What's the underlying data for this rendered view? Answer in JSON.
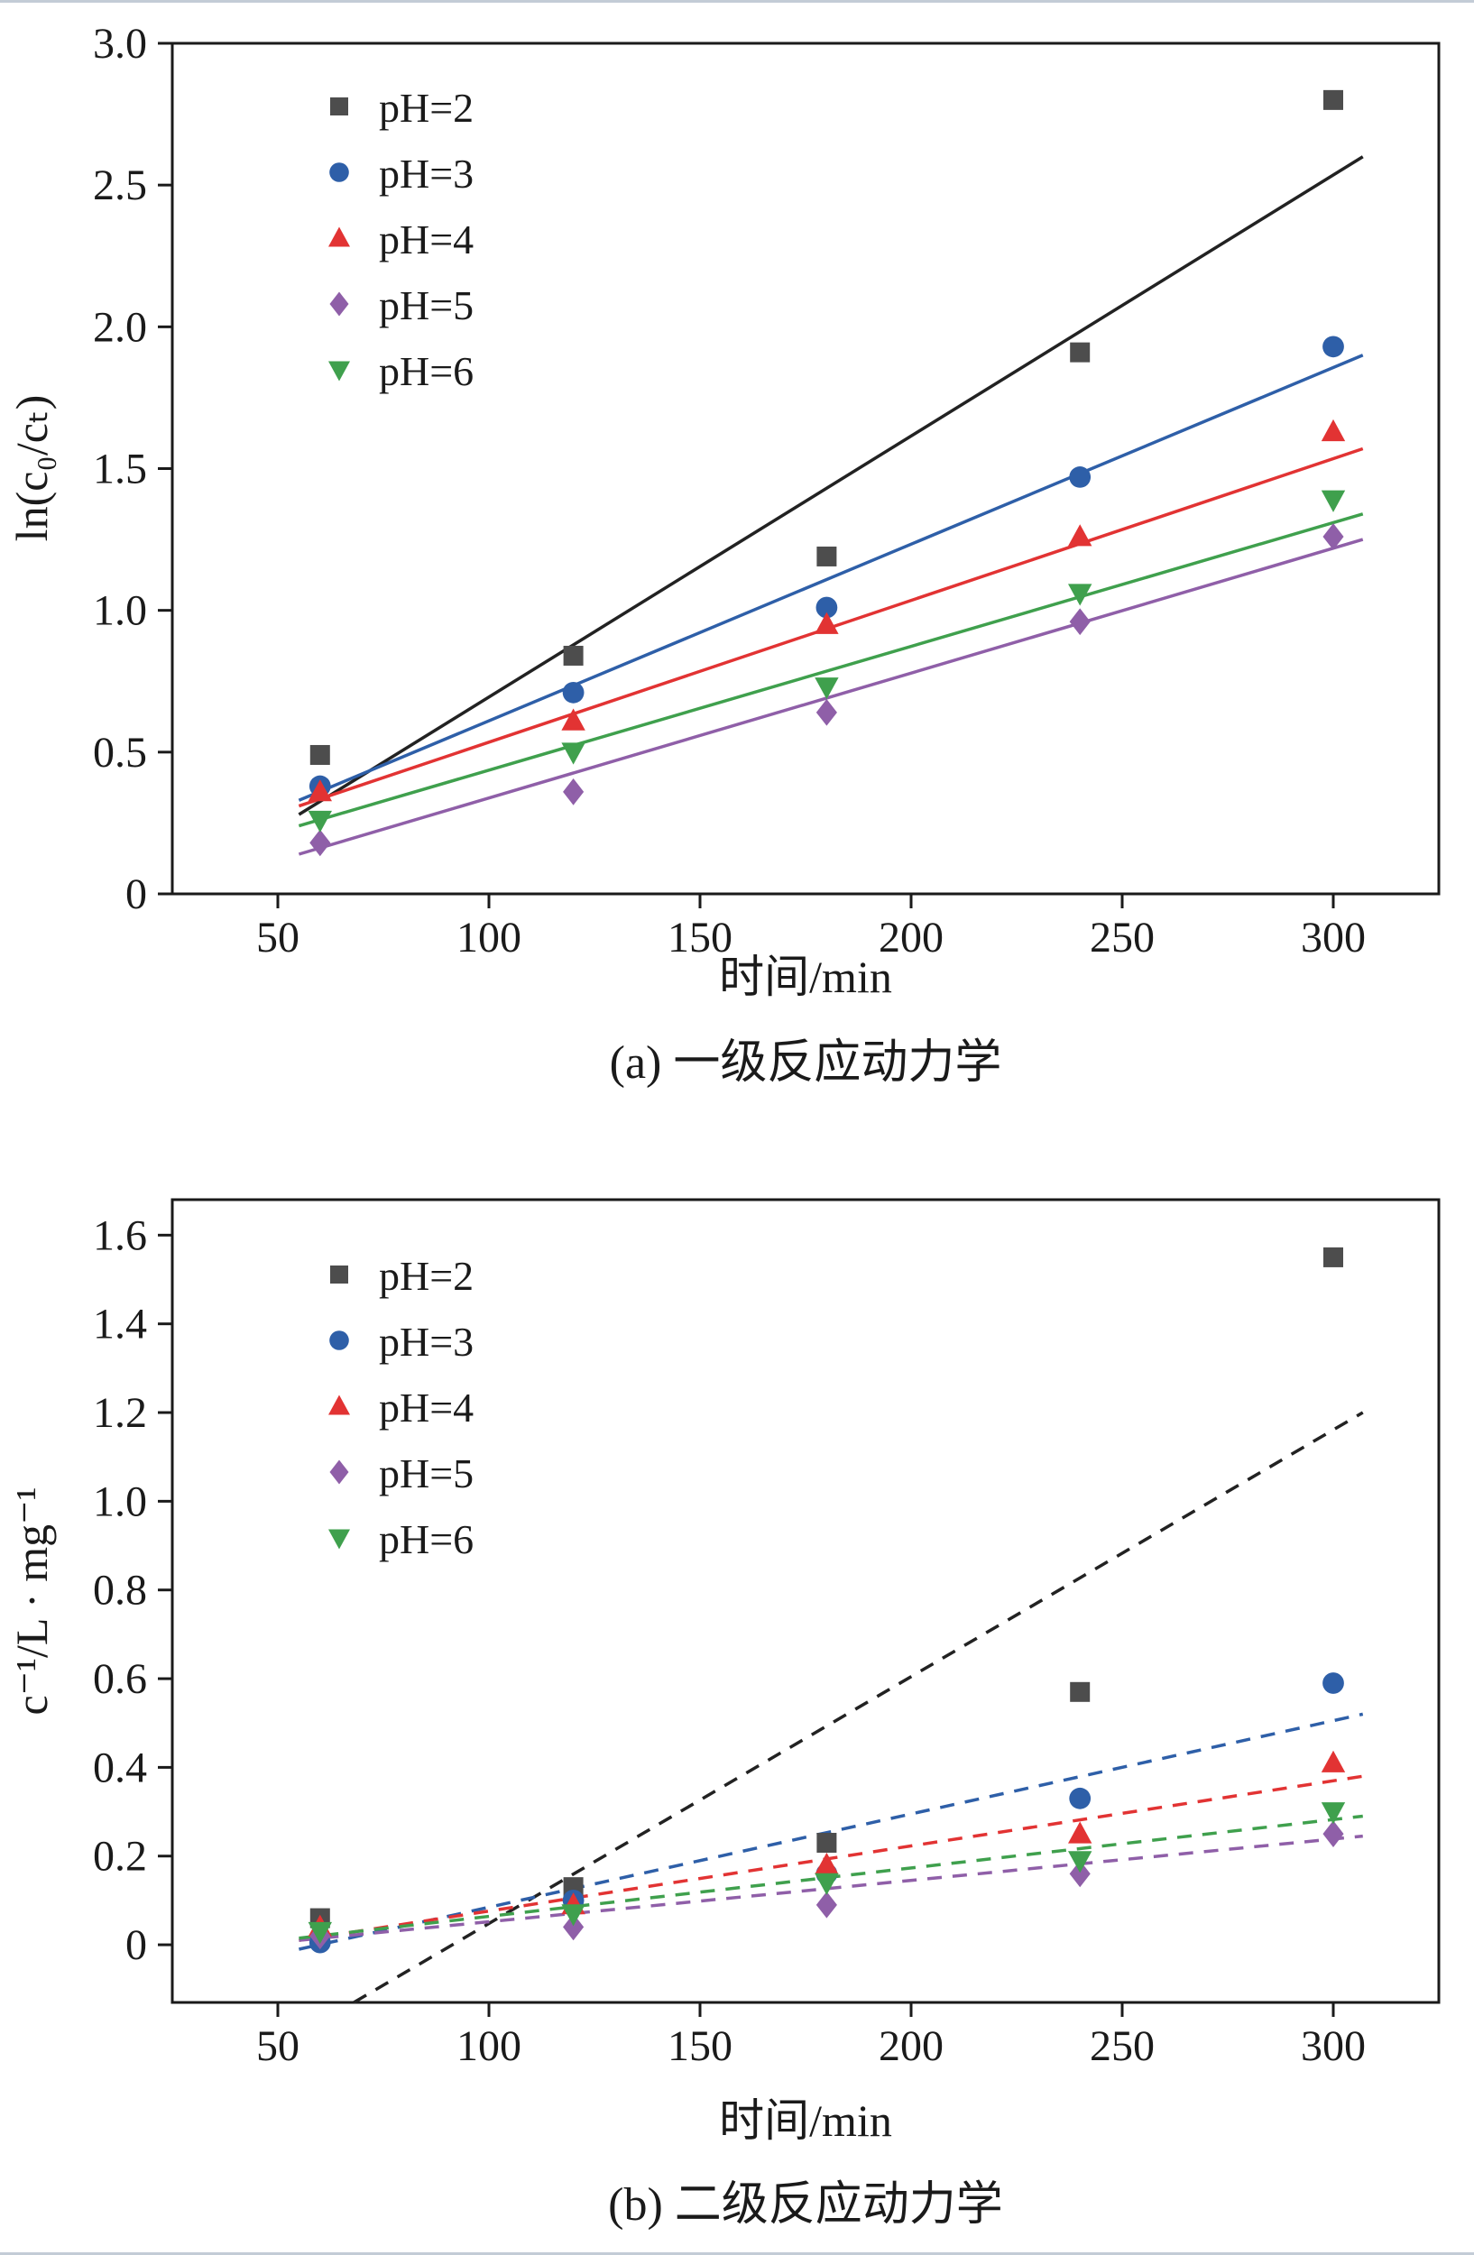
{
  "page": {
    "background": "#ffffff"
  },
  "colors": {
    "frame": "#1a1a1a",
    "ph2_marker": "#4d4d4d",
    "ph2_line": "#222222",
    "ph3": "#2e5fa8",
    "ph4": "#e23333",
    "ph5": "#8f5fa8",
    "ph6": "#3fa04d"
  },
  "chart_data": [
    {
      "type": "scatter",
      "caption": "(a) 一级反应动力学",
      "xlabel": "时间/min",
      "ylabel": "ln(c₀/cₜ)",
      "xlim": [
        25,
        325
      ],
      "ylim": [
        0,
        3.0
      ],
      "xticks": [
        50,
        100,
        150,
        200,
        250,
        300
      ],
      "yticks": [
        0,
        0.5,
        1.0,
        1.5,
        2.0,
        2.5,
        3.0
      ],
      "ytick_labels": [
        "0",
        "0.5",
        "1.0",
        "1.5",
        "2.0",
        "2.5",
        "3.0"
      ],
      "x": [
        60,
        120,
        180,
        240,
        300
      ],
      "grid": false,
      "legend_position": "top-left",
      "line_dash": "solid",
      "series": [
        {
          "name": "pH=2",
          "marker": "square",
          "color": "#4d4d4d",
          "line_color": "#222222",
          "values": [
            0.49,
            0.84,
            1.19,
            1.91,
            2.8
          ],
          "fit": [
            [
              55,
              0.28
            ],
            [
              307,
              2.6
            ]
          ]
        },
        {
          "name": "pH=3",
          "marker": "circle",
          "color": "#2e5fa8",
          "line_color": "#2e5fa8",
          "values": [
            0.38,
            0.71,
            1.01,
            1.47,
            1.93
          ],
          "fit": [
            [
              55,
              0.33
            ],
            [
              307,
              1.9
            ]
          ]
        },
        {
          "name": "pH=4",
          "marker": "triangle-up",
          "color": "#e23333",
          "line_color": "#e23333",
          "values": [
            0.36,
            0.61,
            0.95,
            1.26,
            1.63
          ],
          "fit": [
            [
              55,
              0.31
            ],
            [
              307,
              1.57
            ]
          ]
        },
        {
          "name": "pH=5",
          "marker": "diamond",
          "color": "#8f5fa8",
          "line_color": "#8f5fa8",
          "values": [
            0.18,
            0.36,
            0.64,
            0.96,
            1.26
          ],
          "fit": [
            [
              55,
              0.14
            ],
            [
              307,
              1.25
            ]
          ]
        },
        {
          "name": "pH=6",
          "marker": "triangle-down",
          "color": "#3fa04d",
          "line_color": "#3fa04d",
          "values": [
            0.26,
            0.5,
            0.73,
            1.06,
            1.39
          ],
          "fit": [
            [
              55,
              0.24
            ],
            [
              307,
              1.34
            ]
          ]
        }
      ]
    },
    {
      "type": "scatter",
      "caption": "(b) 二级反应动力学",
      "xlabel": "时间/min",
      "ylabel": "c⁻¹/L · mg⁻¹",
      "xlim": [
        25,
        325
      ],
      "ylim": [
        -0.13,
        1.68
      ],
      "xticks": [
        50,
        100,
        150,
        200,
        250,
        300
      ],
      "yticks": [
        0,
        0.2,
        0.4,
        0.6,
        0.8,
        1.0,
        1.2,
        1.4,
        1.6
      ],
      "ytick_labels": [
        "0",
        "0.2",
        "0.4",
        "0.6",
        "0.8",
        "1.0",
        "1.2",
        "1.4",
        "1.6"
      ],
      "x": [
        60,
        120,
        180,
        240,
        300
      ],
      "grid": false,
      "legend_position": "top-left",
      "line_dash": "dashed",
      "series": [
        {
          "name": "pH=2",
          "marker": "square",
          "color": "#4d4d4d",
          "line_color": "#222222",
          "values": [
            0.06,
            0.13,
            0.23,
            0.57,
            1.55
          ],
          "fit": [
            [
              68,
              -0.13
            ],
            [
              307,
              1.2
            ]
          ]
        },
        {
          "name": "pH=3",
          "marker": "circle",
          "color": "#2e5fa8",
          "line_color": "#2e5fa8",
          "values": [
            0.005,
            0.1,
            0.16,
            0.33,
            0.59
          ],
          "fit": [
            [
              55,
              -0.01
            ],
            [
              307,
              0.52
            ]
          ]
        },
        {
          "name": "pH=4",
          "marker": "triangle-up",
          "color": "#e23333",
          "line_color": "#e23333",
          "values": [
            0.04,
            0.09,
            0.18,
            0.25,
            0.41
          ],
          "fit": [
            [
              55,
              0.01
            ],
            [
              307,
              0.38
            ]
          ]
        },
        {
          "name": "pH=5",
          "marker": "diamond",
          "color": "#8f5fa8",
          "line_color": "#8f5fa8",
          "values": [
            0.02,
            0.04,
            0.09,
            0.16,
            0.25
          ],
          "fit": [
            [
              55,
              0.01
            ],
            [
              307,
              0.245
            ]
          ]
        },
        {
          "name": "pH=6",
          "marker": "triangle-down",
          "color": "#3fa04d",
          "line_color": "#3fa04d",
          "values": [
            0.03,
            0.07,
            0.14,
            0.19,
            0.3
          ],
          "fit": [
            [
              55,
              0.015
            ],
            [
              307,
              0.29
            ]
          ]
        }
      ]
    }
  ]
}
